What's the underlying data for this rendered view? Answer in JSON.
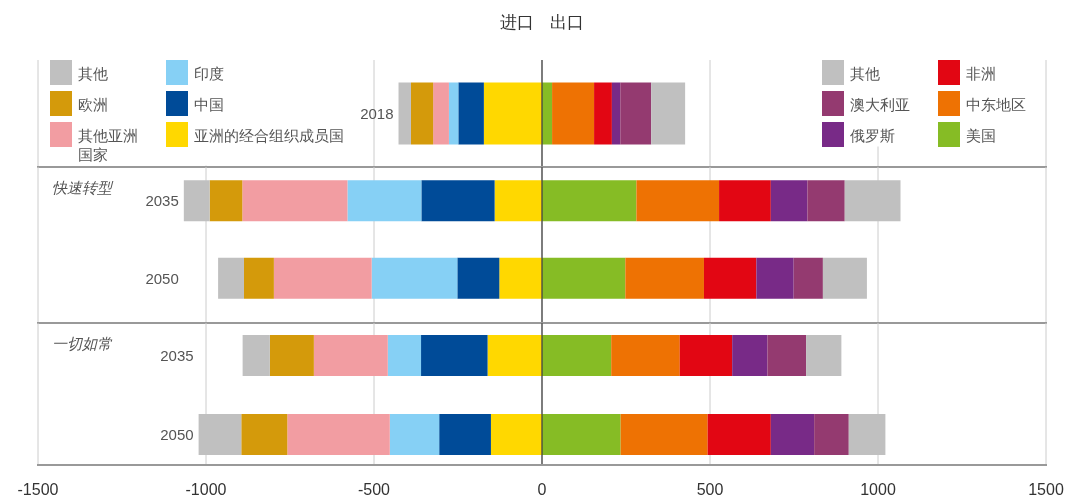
{
  "chart_data": [
    {
      "type": "bar",
      "orientation": "horizontal",
      "stacked": true,
      "title": "进口 出口",
      "categories": [
        "2018"
      ],
      "series": [
        {
          "name": "亚洲的经合组织成员国",
          "color": "#ffd800",
          "values": [
            -173
          ]
        },
        {
          "name": "中国",
          "color": "#004b98",
          "values": [
            -76
          ]
        },
        {
          "name": "印度",
          "color": "#86d0f5",
          "values": [
            -28
          ]
        },
        {
          "name": "其他亚洲国家",
          "color": "#f29da2",
          "values": [
            -47
          ]
        },
        {
          "name": "欧洲",
          "color": "#d49a0b",
          "values": [
            -66
          ]
        },
        {
          "name": "其他",
          "color": "#c0c0c0",
          "values": [
            -37
          ]
        },
        {
          "name": "美国",
          "color": "#86bc25",
          "values": [
            30
          ]
        },
        {
          "name": "中东地区",
          "color": "#ee7203",
          "values": [
            125
          ]
        },
        {
          "name": "非洲",
          "color": "#e20613",
          "values": [
            53
          ]
        },
        {
          "name": "俄罗斯",
          "color": "#782a87",
          "values": [
            25
          ]
        },
        {
          "name": "澳大利亚",
          "color": "#943a70",
          "values": [
            92
          ]
        },
        {
          "name": "其他",
          "color": "#c0c0c0",
          "values": [
            101
          ]
        }
      ],
      "xlim": [
        -1500,
        1500
      ],
      "xticks": [
        -1500,
        -1000,
        -500,
        0,
        500,
        1000,
        1500
      ],
      "grid": "x",
      "legend": "top",
      "tick_labels": "y"
    },
    {
      "type": "bar",
      "orientation": "horizontal",
      "stacked": true,
      "title": "快速转型",
      "categories": [
        "2035",
        "2050"
      ],
      "series": [
        {
          "color": "#ffd800",
          "values": [
            -141,
            -127
          ]
        },
        {
          "color": "#004b98",
          "values": [
            -218,
            -125
          ]
        },
        {
          "color": "#86d0f5",
          "values": [
            -220,
            -255
          ]
        },
        {
          "color": "#f29da2",
          "values": [
            -313,
            -291
          ]
        },
        {
          "color": "#d49a0b",
          "values": [
            -97,
            -89
          ]
        },
        {
          "color": "#c0c0c0",
          "values": [
            -77,
            -77
          ]
        },
        {
          "color": "#86bc25",
          "values": [
            281,
            248
          ]
        },
        {
          "color": "#ee7203",
          "values": [
            246,
            234
          ]
        },
        {
          "color": "#e20613",
          "values": [
            154,
            156
          ]
        },
        {
          "color": "#782a87",
          "values": [
            109,
            111
          ]
        },
        {
          "color": "#943a70",
          "values": [
            111,
            87
          ]
        },
        {
          "color": "#c0c0c0",
          "values": [
            166,
            131
          ]
        }
      ],
      "xlim": [
        -1500,
        1500
      ],
      "xticks": [
        -1500,
        -1000,
        -500,
        0,
        500,
        1000,
        1500
      ],
      "grid": "x",
      "tick_labels": "y"
    },
    {
      "type": "bar",
      "orientation": "horizontal",
      "stacked": true,
      "title": "一切如常",
      "categories": [
        "2035",
        "2050"
      ],
      "series": [
        {
          "color": "#ffd800",
          "values": [
            -162,
            -152
          ]
        },
        {
          "color": "#004b98",
          "values": [
            -198,
            -154
          ]
        },
        {
          "color": "#86d0f5",
          "values": [
            -99,
            -147
          ]
        },
        {
          "color": "#f29da2",
          "values": [
            -220,
            -305
          ]
        },
        {
          "color": "#d49a0b",
          "values": [
            -131,
            -137
          ]
        },
        {
          "color": "#c0c0c0",
          "values": [
            -81,
            -127
          ]
        },
        {
          "color": "#86bc25",
          "values": [
            206,
            234
          ]
        },
        {
          "color": "#ee7203",
          "values": [
            204,
            259
          ]
        },
        {
          "color": "#e20613",
          "values": [
            156,
            188
          ]
        },
        {
          "color": "#782a87",
          "values": [
            105,
            129
          ]
        },
        {
          "color": "#943a70",
          "values": [
            115,
            103
          ]
        },
        {
          "color": "#c0c0c0",
          "values": [
            105,
            109
          ]
        }
      ],
      "xlim": [
        -1500,
        1500
      ],
      "xticks": [
        -1500,
        -1000,
        -500,
        0,
        500,
        1000,
        1500
      ],
      "grid": "x"
    }
  ]
}
